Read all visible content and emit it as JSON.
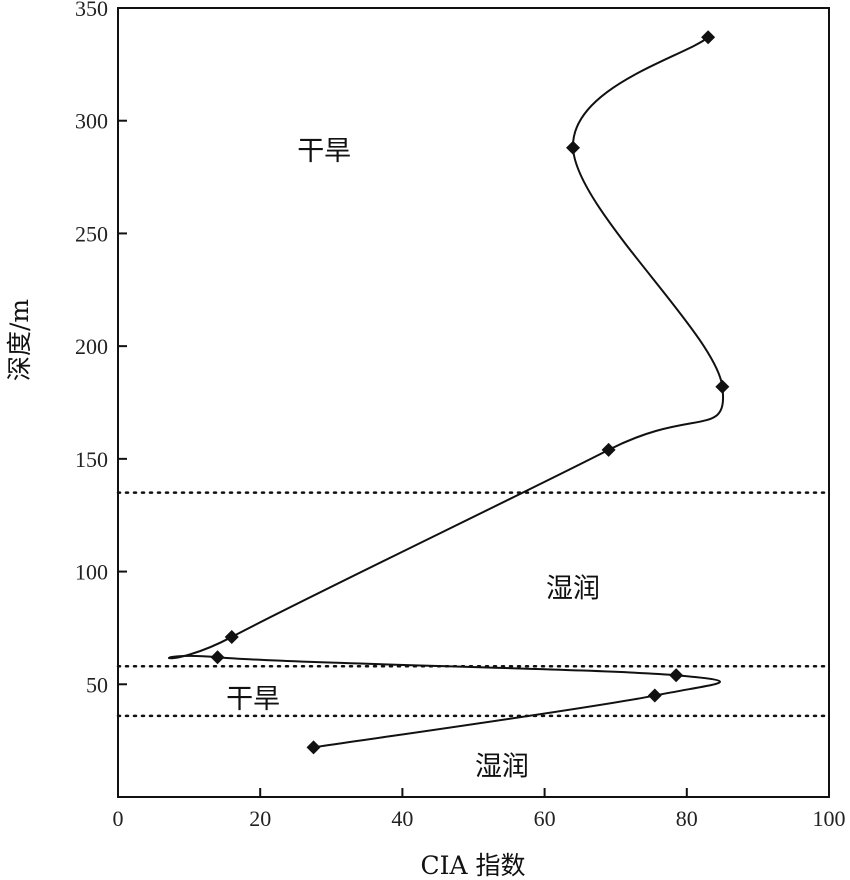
{
  "chart_data": {
    "type": "line",
    "xlabel": "CIA 指数",
    "ylabel": "深度/m",
    "xlim": [
      0,
      100
    ],
    "ylim": [
      0,
      350
    ],
    "x_ticks": [
      0,
      20,
      40,
      60,
      80,
      100
    ],
    "y_ticks": [
      50,
      100,
      150,
      200,
      250,
      300,
      350
    ],
    "grid": false,
    "series": [
      {
        "points": [
          {
            "cia": 27.5,
            "depth": 22
          },
          {
            "cia": 75.5,
            "depth": 45
          },
          {
            "cia": 78.5,
            "depth": 54
          },
          {
            "cia": 14.0,
            "depth": 62
          },
          {
            "cia": 16.0,
            "depth": 71
          },
          {
            "cia": 69.0,
            "depth": 154
          },
          {
            "cia": 85.0,
            "depth": 182
          },
          {
            "cia": 64.0,
            "depth": 288
          },
          {
            "cia": 83.0,
            "depth": 337
          }
        ]
      }
    ],
    "boundaries": [
      36,
      58,
      135
    ],
    "annotations": [
      {
        "text": "干旱",
        "x": 29,
        "y": 287
      },
      {
        "text": "湿润",
        "x": 64,
        "y": 93
      },
      {
        "text": "干旱",
        "x": 19,
        "y": 44
      },
      {
        "text": "湿润",
        "x": 54,
        "y": 14
      }
    ]
  }
}
